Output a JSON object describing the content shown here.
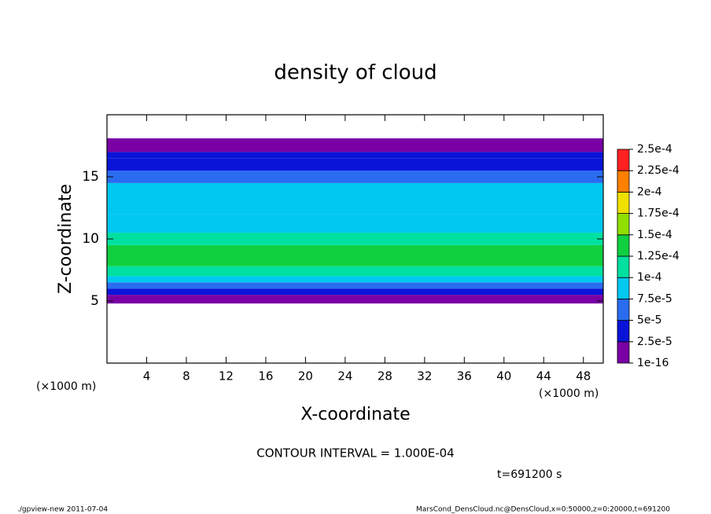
{
  "chart_data": {
    "type": "contour",
    "title": "density of cloud",
    "x_label": "X-coordinate",
    "y_label": "Z-coordinate",
    "x_unit_left": "(×1000 m)",
    "x_unit_right": "(×1000 m)",
    "xlim": [
      0,
      50
    ],
    "xticks": [
      4,
      8,
      12,
      16,
      20,
      24,
      28,
      32,
      36,
      40,
      44,
      48
    ],
    "ylim": [
      0,
      20
    ],
    "yticks": [
      5,
      10,
      15
    ],
    "zbins": [
      4.8,
      5.5,
      6.0,
      6.5,
      7.0,
      7.8,
      9.5,
      10.5,
      12,
      14.5,
      15.5,
      16.5,
      17,
      18.1
    ],
    "values": [
      1.5e-05,
      3.5e-05,
      6e-05,
      9e-05,
      0.00011,
      0.00014,
      0.00012,
      9e-05,
      8e-05,
      6e-05,
      4e-05,
      3e-05,
      1.5e-05
    ],
    "levels": [
      {
        "value": 1e-16,
        "label": "1e-16"
      },
      {
        "value": 2.5e-05,
        "label": "2.5e-5"
      },
      {
        "value": 5e-05,
        "label": "5e-5"
      },
      {
        "value": 7.5e-05,
        "label": "7.5e-5"
      },
      {
        "value": 0.0001,
        "label": "1e-4"
      },
      {
        "value": 0.000125,
        "label": "1.25e-4"
      },
      {
        "value": 0.00015,
        "label": "1.5e-4"
      },
      {
        "value": 0.000175,
        "label": "1.75e-4"
      },
      {
        "value": 0.0002,
        "label": "2e-4"
      },
      {
        "value": 0.000225,
        "label": "2.25e-4"
      },
      {
        "value": 0.00025,
        "label": "2.5e-4"
      }
    ],
    "colors": [
      "#7a00a6",
      "#0a14d8",
      "#2a6cf0",
      "#00c8f0",
      "#00e0a0",
      "#10d040",
      "#90e000",
      "#f0e000",
      "#ff8000",
      "#ff2020"
    ],
    "contour_note": "CONTOUR INTERVAL = 1.000E-04",
    "time_note": "t=691200 s",
    "footer_left": "./gpview-new  2011-07-04",
    "footer_right": "MarsCond_DensCloud.nc@DensCloud,x=0:50000,z=0:20000,t=691200"
  }
}
